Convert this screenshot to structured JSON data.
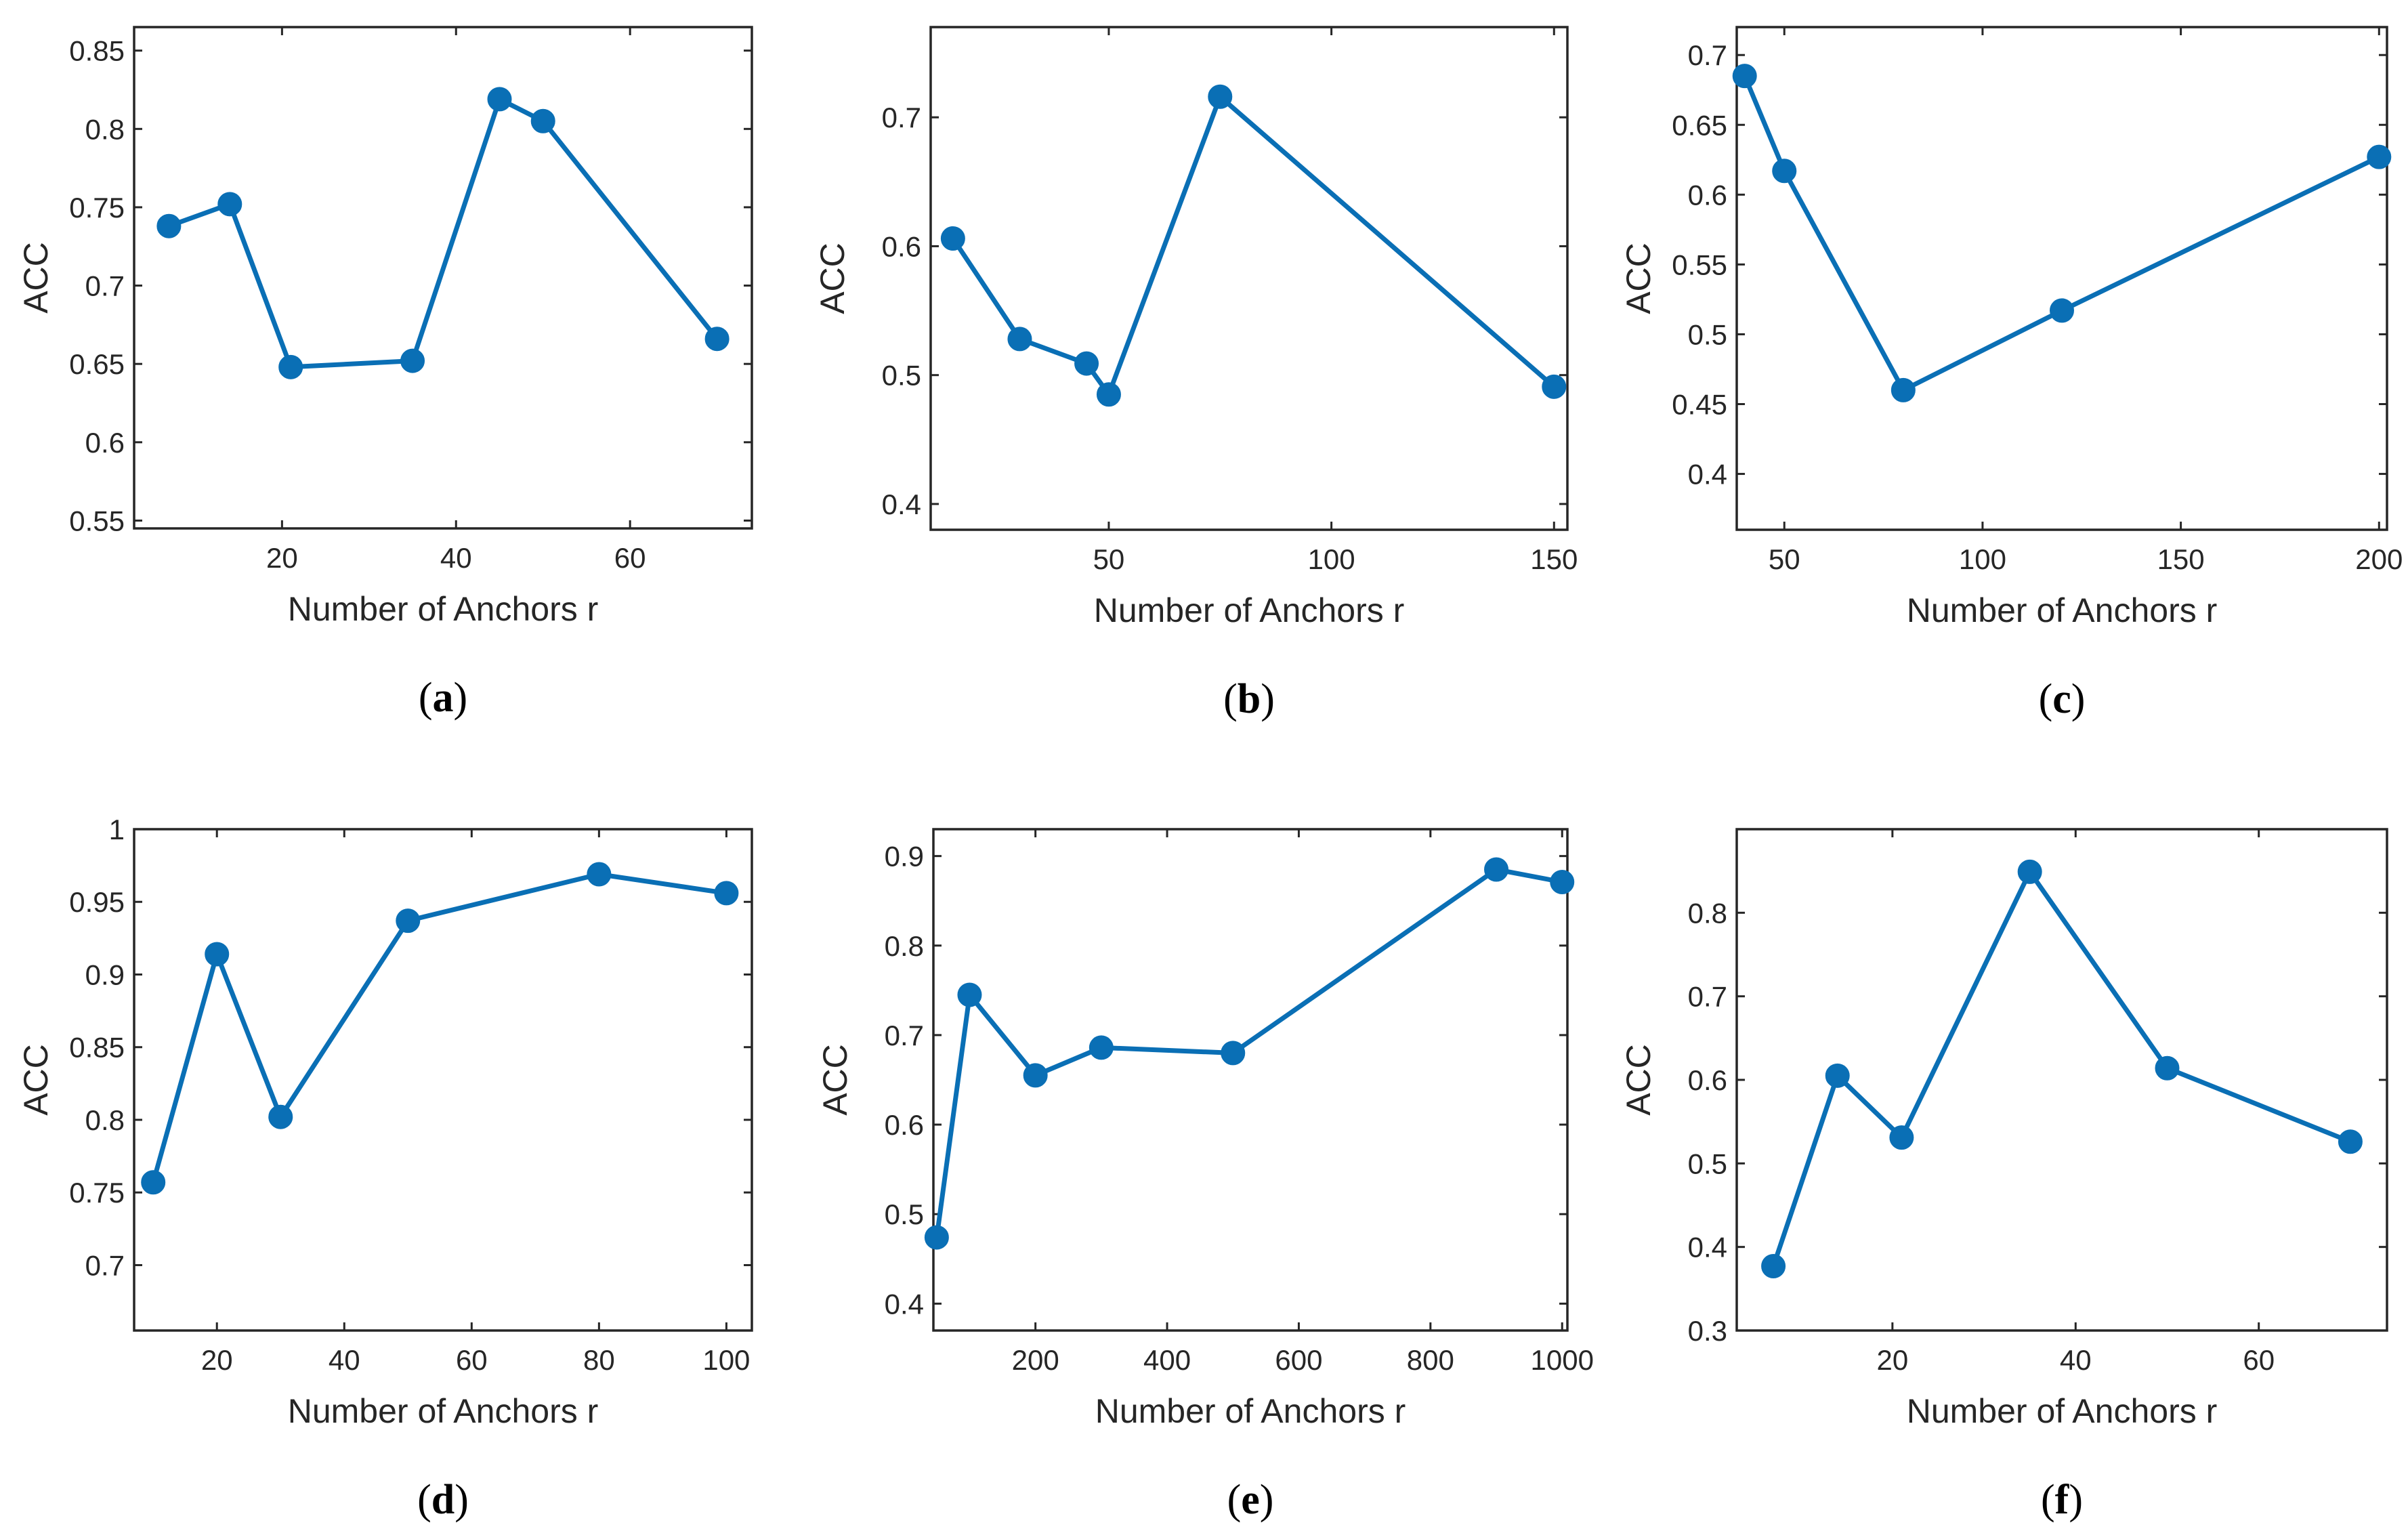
{
  "chart_data": [
    {
      "id": "a",
      "type": "line",
      "caption": "a",
      "xlabel": "Number of Anchors r",
      "ylabel": "ACC",
      "xlim": [
        3,
        74
      ],
      "ylim": [
        0.545,
        0.865
      ],
      "xticks": [
        20,
        40,
        60
      ],
      "xtick_labels": [
        "20",
        "40",
        "60"
      ],
      "yticks": [
        0.55,
        0.6,
        0.65,
        0.7,
        0.75,
        0.8,
        0.85
      ],
      "ytick_labels": [
        "0.55",
        "0.6",
        "0.65",
        "0.7",
        "0.75",
        "0.8",
        "0.85"
      ],
      "series": [
        {
          "name": "ACC",
          "color": "#0a6fb5",
          "x": [
            7,
            14,
            21,
            35,
            45,
            50,
            70
          ],
          "y": [
            0.738,
            0.752,
            0.648,
            0.652,
            0.819,
            0.805,
            0.666
          ]
        }
      ]
    },
    {
      "id": "b",
      "type": "line",
      "caption": "b",
      "xlabel": "Number of Anchors r",
      "ylabel": "ACC",
      "xlim": [
        10,
        153
      ],
      "ylim": [
        0.38,
        0.77
      ],
      "xticks": [
        50,
        100,
        150
      ],
      "xtick_labels": [
        "50",
        "100",
        "150"
      ],
      "yticks": [
        0.4,
        0.5,
        0.6,
        0.7
      ],
      "ytick_labels": [
        "0.4",
        "0.5",
        "0.6",
        "0.7"
      ],
      "series": [
        {
          "name": "ACC",
          "color": "#0a6fb5",
          "x": [
            15,
            30,
            45,
            50,
            75,
            150
          ],
          "y": [
            0.606,
            0.528,
            0.509,
            0.485,
            0.716,
            0.491
          ]
        }
      ]
    },
    {
      "id": "c",
      "type": "line",
      "caption": "c",
      "xlabel": "Number of Anchors r",
      "ylabel": "ACC",
      "xlim": [
        38,
        202
      ],
      "ylim": [
        0.36,
        0.72
      ],
      "xticks": [
        50,
        100,
        150,
        200
      ],
      "xtick_labels": [
        "50",
        "100",
        "150",
        "200"
      ],
      "yticks": [
        0.4,
        0.45,
        0.5,
        0.55,
        0.6,
        0.65,
        0.7
      ],
      "ytick_labels": [
        "0.4",
        "0.45",
        "0.5",
        "0.55",
        "0.6",
        "0.65",
        "0.7"
      ],
      "series": [
        {
          "name": "ACC",
          "color": "#0a6fb5",
          "x": [
            40,
            50,
            80,
            120,
            200
          ],
          "y": [
            0.685,
            0.617,
            0.46,
            0.517,
            0.627
          ]
        }
      ]
    },
    {
      "id": "d",
      "type": "line",
      "caption": "d",
      "xlabel": "Number of Anchors r",
      "ylabel": "ACC",
      "xlim": [
        7,
        104
      ],
      "ylim": [
        0.655,
        1.0
      ],
      "xticks": [
        20,
        40,
        60,
        80,
        100
      ],
      "xtick_labels": [
        "20",
        "40",
        "60",
        "80",
        "100"
      ],
      "yticks": [
        0.7,
        0.75,
        0.8,
        0.85,
        0.9,
        0.95,
        1.0
      ],
      "ytick_labels": [
        "0.7",
        "0.75",
        "0.8",
        "0.85",
        "0.9",
        "0.95",
        "1"
      ],
      "series": [
        {
          "name": "ACC",
          "color": "#0a6fb5",
          "x": [
            10,
            20,
            30,
            50,
            80,
            100
          ],
          "y": [
            0.757,
            0.914,
            0.802,
            0.937,
            0.969,
            0.956
          ]
        }
      ]
    },
    {
      "id": "e",
      "type": "line",
      "caption": "e",
      "xlabel": "Number of Anchors r",
      "ylabel": "ACC",
      "xlim": [
        45,
        1008
      ],
      "ylim": [
        0.37,
        0.93
      ],
      "xticks": [
        200,
        400,
        600,
        800,
        1000
      ],
      "xtick_labels": [
        "200",
        "400",
        "600",
        "800",
        "1000"
      ],
      "yticks": [
        0.4,
        0.5,
        0.6,
        0.7,
        0.8,
        0.9
      ],
      "ytick_labels": [
        "0.4",
        "0.5",
        "0.6",
        "0.7",
        "0.8",
        "0.9"
      ],
      "series": [
        {
          "name": "ACC",
          "color": "#0a6fb5",
          "x": [
            50,
            100,
            200,
            300,
            500,
            900,
            1000
          ],
          "y": [
            0.474,
            0.745,
            0.655,
            0.686,
            0.68,
            0.885,
            0.871
          ]
        }
      ]
    },
    {
      "id": "f",
      "type": "line",
      "caption": "f",
      "xlabel": "Number of Anchors r",
      "ylabel": "ACC",
      "xlim": [
        3,
        74
      ],
      "ylim": [
        0.3,
        0.9
      ],
      "xticks": [
        20,
        40,
        60
      ],
      "xtick_labels": [
        "20",
        "40",
        "60"
      ],
      "yticks": [
        0.3,
        0.4,
        0.5,
        0.6,
        0.7,
        0.8
      ],
      "ytick_labels": [
        "0.3",
        "0.4",
        "0.5",
        "0.6",
        "0.7",
        "0.8"
      ],
      "series": [
        {
          "name": "ACC",
          "color": "#0a6fb5",
          "x": [
            7,
            14,
            21,
            35,
            50,
            70
          ],
          "y": [
            0.377,
            0.605,
            0.531,
            0.849,
            0.614,
            0.526
          ]
        }
      ]
    }
  ]
}
